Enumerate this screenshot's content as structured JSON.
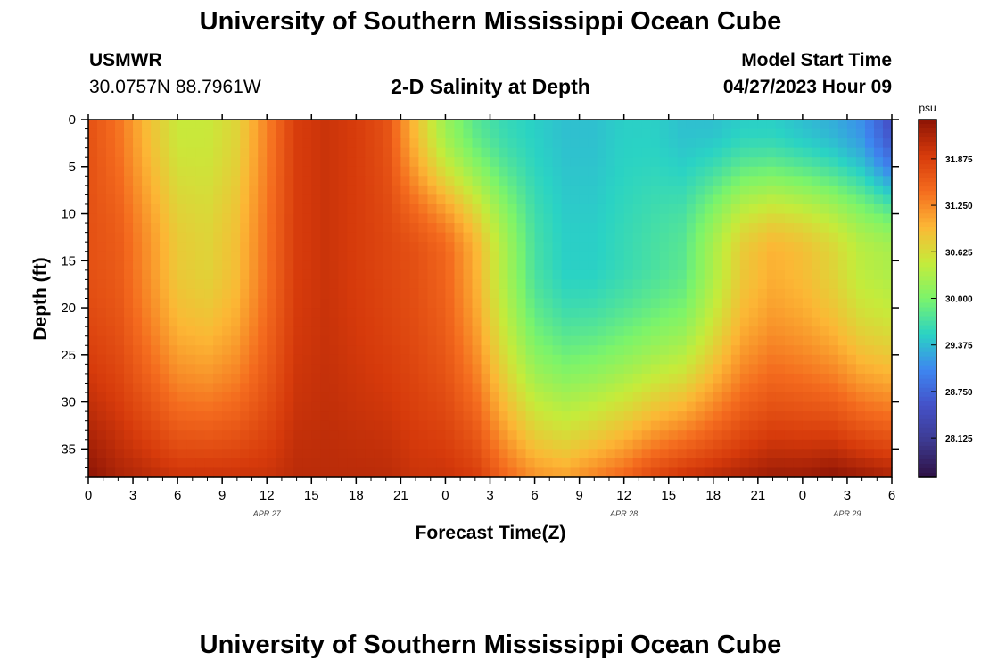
{
  "header": {
    "title": "University of Southern Mississippi Ocean Cube",
    "station": "USMWR",
    "coordinates": "30.0757N  88.7961W",
    "subtitle": "2-D Salinity at Depth",
    "model_start_label": "Model Start Time",
    "model_start_value": "04/27/2023 Hour 09"
  },
  "footer": {
    "title": "University of Southern Mississippi Ocean Cube"
  },
  "chart_data": {
    "type": "heatmap",
    "title": "2-D Salinity at Depth",
    "xlabel": "Forecast Time(Z)",
    "ylabel": "Depth (ft)",
    "x_range_hours": [
      0,
      54
    ],
    "y_range_ft": [
      0,
      38
    ],
    "x_ticks": [
      0,
      3,
      6,
      9,
      12,
      15,
      18,
      21,
      24,
      27,
      30,
      33,
      36,
      39,
      42,
      45,
      48,
      51,
      54
    ],
    "x_tick_labels": [
      "0",
      "3",
      "6",
      "9",
      "12",
      "15",
      "18",
      "21",
      "0",
      "3",
      "6",
      "9",
      "12",
      "15",
      "18",
      "21",
      "0",
      "3",
      "6"
    ],
    "date_labels": [
      {
        "hour": 12,
        "text": "APR 27"
      },
      {
        "hour": 36,
        "text": "APR 28"
      },
      {
        "hour": 51,
        "text": "APR 29"
      }
    ],
    "y_ticks": [
      0,
      5,
      10,
      15,
      20,
      25,
      30,
      35
    ],
    "y_tick_labels": [
      "0",
      "5",
      "10",
      "15",
      "20",
      "25",
      "30",
      "35"
    ],
    "colorbar": {
      "unit": "psu",
      "min": 27.6,
      "max": 32.4,
      "ticks": [
        28.125,
        28.75,
        29.375,
        30.0,
        30.625,
        31.25,
        31.875
      ],
      "tick_labels": [
        "28.125",
        "28.750",
        "29.375",
        "30.000",
        "30.625",
        "31.250",
        "31.875"
      ],
      "colors": [
        "#2e1044",
        "#3d3a8f",
        "#4451c8",
        "#3e86f0",
        "#2ad3c4",
        "#7cf46a",
        "#c6eb3a",
        "#fcb735",
        "#f46b1e",
        "#d63a0b",
        "#8c1405"
      ]
    },
    "grid_size": {
      "cols": 90,
      "rows": 38
    },
    "description_fields": {
      "salinity_profile_keypoints_hour": [
        0,
        2,
        4,
        6,
        8,
        10,
        12,
        14,
        16,
        18,
        20,
        22,
        24,
        26,
        28,
        30,
        32,
        34,
        36,
        38,
        40,
        42,
        44,
        46,
        48,
        50,
        52,
        54
      ],
      "surface_psu": [
        31.7,
        31.4,
        30.9,
        30.5,
        30.5,
        30.7,
        31.3,
        31.9,
        32.0,
        31.9,
        31.7,
        30.9,
        30.2,
        29.8,
        29.6,
        29.5,
        29.4,
        29.4,
        29.5,
        29.5,
        29.4,
        29.4,
        29.5,
        29.5,
        29.4,
        29.3,
        29.1,
        28.5
      ],
      "mid_psu_15ft": [
        31.7,
        31.6,
        31.2,
        30.8,
        30.7,
        30.9,
        31.4,
        31.9,
        32.0,
        31.9,
        31.8,
        31.7,
        31.5,
        31.0,
        30.3,
        29.7,
        29.5,
        29.5,
        29.6,
        29.7,
        29.8,
        30.3,
        30.8,
        31.0,
        30.9,
        30.7,
        30.4,
        30.3
      ],
      "bottom_psu_38ft": [
        32.4,
        32.2,
        32.1,
        32.0,
        32.0,
        32.0,
        32.0,
        32.1,
        32.1,
        32.1,
        32.1,
        32.0,
        32.0,
        31.9,
        31.5,
        31.2,
        31.1,
        31.3,
        31.5,
        31.8,
        32.0,
        32.1,
        32.2,
        32.3,
        32.3,
        32.4,
        32.3,
        32.2
      ]
    }
  }
}
